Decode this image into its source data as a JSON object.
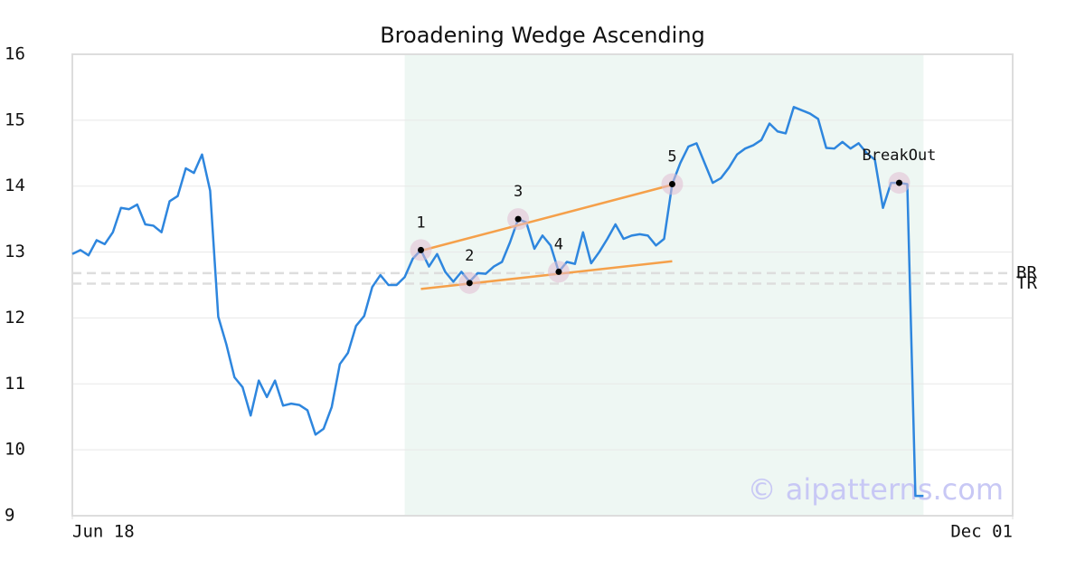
{
  "chart_data": {
    "type": "line",
    "title": "Broadening Wedge Ascending",
    "color": "#2e86de",
    "values": [
      12.97,
      13.03,
      12.95,
      13.18,
      13.12,
      13.3,
      13.67,
      13.65,
      13.72,
      13.42,
      13.4,
      13.3,
      13.77,
      13.85,
      14.27,
      14.2,
      14.48,
      13.93,
      12.02,
      11.6,
      11.1,
      10.95,
      10.52,
      11.05,
      10.8,
      11.05,
      10.67,
      10.7,
      10.68,
      10.6,
      10.23,
      10.32,
      10.65,
      11.3,
      11.47,
      11.88,
      12.03,
      12.47,
      12.65,
      12.5,
      12.5,
      12.62,
      12.9,
      13.03,
      12.78,
      12.97,
      12.7,
      12.55,
      12.7,
      12.55,
      12.68,
      12.67,
      12.78,
      12.85,
      13.15,
      13.5,
      13.45,
      13.05,
      13.25,
      13.1,
      12.7,
      12.85,
      12.82,
      13.3,
      12.83,
      13.0,
      13.2,
      13.42,
      13.2,
      13.25,
      13.27,
      13.25,
      13.1,
      13.2,
      14.03,
      14.35,
      14.6,
      14.65,
      14.35,
      14.05,
      14.12,
      14.28,
      14.48,
      14.57,
      14.62,
      14.7,
      14.95,
      14.83,
      14.8,
      15.2,
      15.15,
      15.1,
      15.02,
      14.58,
      14.57,
      14.67,
      14.57,
      14.65,
      14.5,
      14.4,
      13.67,
      14.05,
      14.05,
      14.03,
      9.3,
      9.3
    ],
    "xlim": [
      0,
      116
    ],
    "xticks": [
      {
        "value": 0,
        "label": "Jun 18"
      },
      {
        "value": 116,
        "label": "Dec 01"
      }
    ],
    "ylim": [
      9,
      16
    ],
    "yticks": [
      9,
      10,
      11,
      12,
      13,
      14,
      15,
      16
    ],
    "grid": true,
    "pattern_range": [
      41,
      105
    ],
    "annotations": [
      {
        "label": "1",
        "x": 43,
        "y": 13.03
      },
      {
        "label": "2",
        "x": 49,
        "y": 12.53
      },
      {
        "label": "3",
        "x": 55,
        "y": 13.5
      },
      {
        "label": "4",
        "x": 60,
        "y": 12.7
      },
      {
        "label": "5",
        "x": 74,
        "y": 14.03
      },
      {
        "label": "BreakOut",
        "x": 102,
        "y": 14.05
      }
    ],
    "trendlines": [
      {
        "x0": 43,
        "y0": 13.02,
        "x1": 74,
        "y1": 14.02,
        "color": "#f5a04a"
      },
      {
        "x0": 43,
        "y0": 12.44,
        "x1": 74,
        "y1": 12.86,
        "color": "#f5a04a"
      }
    ],
    "levels": [
      {
        "label": "BR",
        "value": 12.68
      },
      {
        "label": "TR",
        "value": 12.52
      }
    ],
    "watermark": "© aipatterns.com"
  }
}
